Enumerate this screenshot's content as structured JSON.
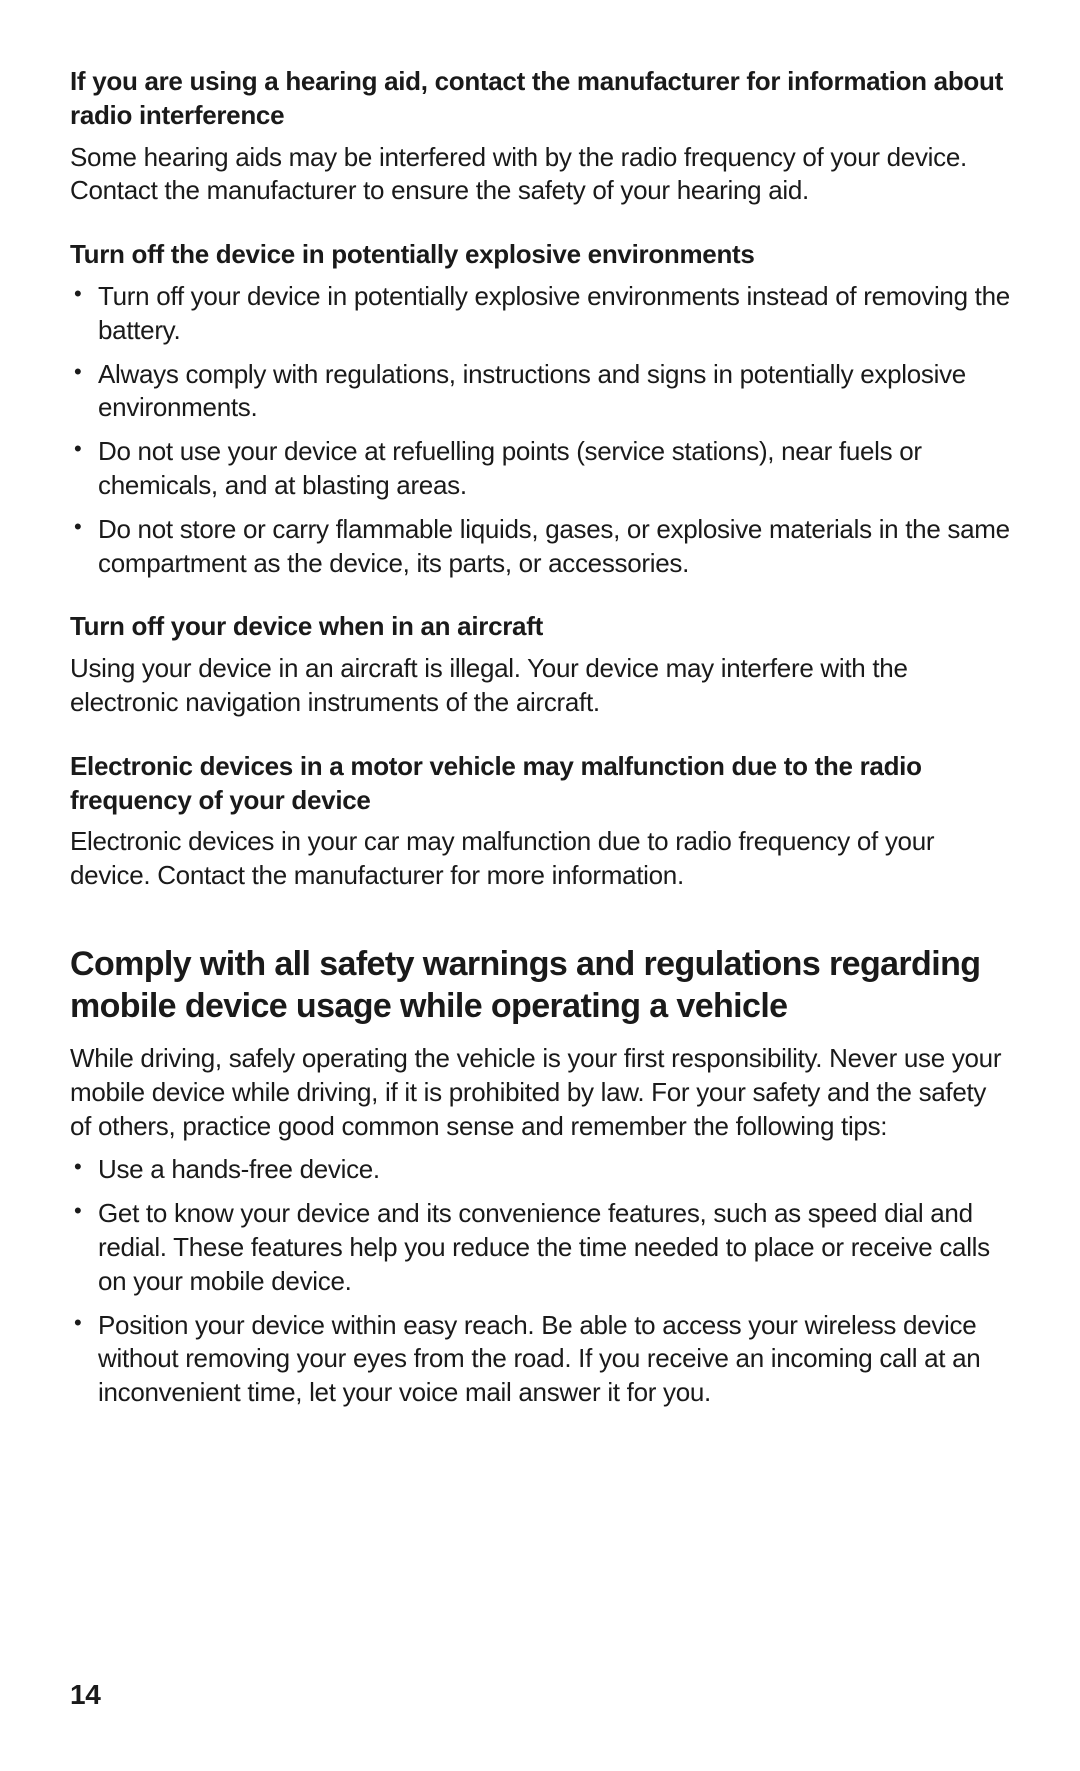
{
  "page_number": "14",
  "typography": {
    "body_fontsize_pt": 20,
    "heading_fontsize_pt": 20,
    "major_heading_fontsize_pt": 26,
    "page_number_fontsize_pt": 21,
    "body_color": "#1a1a1a",
    "background_color": "#ffffff"
  },
  "sec1": {
    "heading": "If you are using a hearing aid, contact the manufacturer for information about radio interference",
    "para": "Some hearing aids may be interfered with by the radio frequency of your device. Contact the manufacturer to ensure the safety of your hearing aid."
  },
  "sec2": {
    "heading": "Turn off the device in potentially explosive environments",
    "items": [
      "Turn off your device in potentially explosive environments instead of removing the battery.",
      "Always comply with regulations, instructions and signs in potentially explosive environments.",
      "Do not use your device at refuelling points (service stations), near fuels or chemicals, and at blasting areas.",
      "Do not store or carry flammable liquids, gases, or explosive materials in the same compartment as the device, its parts, or accessories."
    ]
  },
  "sec3": {
    "heading": "Turn off your device when in an aircraft",
    "para": "Using your device in an aircraft is illegal. Your device may interfere with the electronic navigation instruments of the aircraft."
  },
  "sec4": {
    "heading": "Electronic devices in a motor vehicle may malfunction due to the radio frequency of your device",
    "para": "Electronic devices in your car may malfunction due to radio frequency of your device. Contact the manufacturer for more information."
  },
  "major": {
    "heading": "Comply with all safety warnings and regulations regarding mobile device usage while operating a vehicle",
    "para": "While driving, safely operating the vehicle is your first responsibility. Never use your mobile device while driving, if it is prohibited by law. For your safety and the safety of others, practice good common sense and remember the following tips:",
    "items": [
      "Use a hands-free device.",
      "Get to know your device and its convenience features, such as speed dial and redial. These features help you reduce the time needed to place or receive calls on your mobile device.",
      "Position your device within easy reach. Be able to access your wireless device without removing your eyes from the road. If you receive an incoming call at an inconvenient time, let your voice mail answer it for you."
    ]
  }
}
